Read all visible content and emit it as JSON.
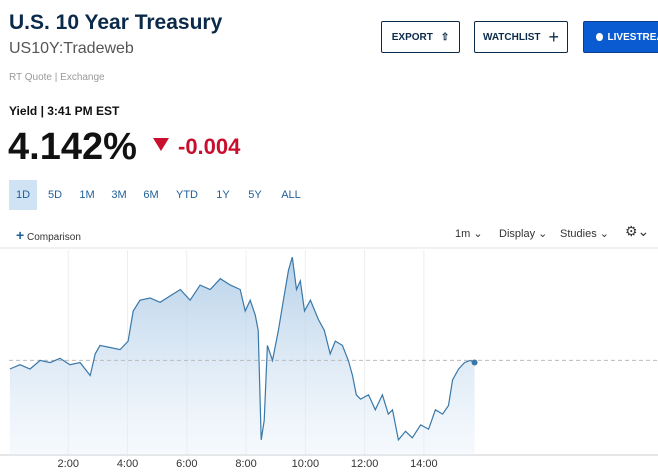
{
  "header": {
    "title": "U.S. 10 Year Treasury",
    "symbol": "US10Y:Tradeweb",
    "source": "RT Quote | Exchange"
  },
  "buttons": [
    "EXPORT",
    "WATCHLIST",
    "LIVESTREAM"
  ],
  "quote": {
    "label": "Yield | 3:41 PM EST",
    "price": "4.142%",
    "change": "-0.004"
  },
  "ranges": [
    "1D",
    "5D",
    "1M",
    "3M",
    "6M",
    "YTD",
    "1Y",
    "5Y",
    "ALL"
  ],
  "selected_range": 0,
  "toolbar": {
    "comparison": "Comparison",
    "interval": "1m",
    "display": "Display",
    "studies": "Studies"
  },
  "chart_data": {
    "type": "area",
    "x": [
      0.03,
      0.37,
      0.71,
      1.05,
      1.39,
      1.72,
      2.06,
      2.4,
      2.74,
      2.91,
      3.07,
      3.41,
      3.75,
      4.02,
      4.19,
      4.42,
      4.76,
      5.1,
      5.44,
      5.78,
      6.11,
      6.45,
      6.79,
      7.13,
      7.47,
      7.8,
      7.97,
      8.14,
      8.31,
      8.41,
      8.51,
      8.61,
      8.72,
      8.89,
      9.09,
      9.26,
      9.43,
      9.56,
      9.7,
      9.83,
      9.97,
      10.17,
      10.44,
      10.64,
      10.84,
      11.01,
      11.25,
      11.45,
      11.59,
      11.72,
      11.86,
      12.13,
      12.36,
      12.6,
      12.8,
      12.94,
      13.14,
      13.38,
      13.61,
      13.89,
      14.16,
      14.39,
      14.63,
      14.83,
      14.97,
      15.17,
      15.37,
      15.57,
      15.71
    ],
    "values": [
      4.14,
      4.142,
      4.14,
      4.144,
      4.143,
      4.145,
      4.142,
      4.143,
      4.137,
      4.147,
      4.151,
      4.15,
      4.149,
      4.153,
      4.167,
      4.172,
      4.173,
      4.171,
      4.174,
      4.177,
      4.172,
      4.179,
      4.177,
      4.182,
      4.179,
      4.177,
      4.167,
      4.172,
      4.165,
      4.158,
      4.107,
      4.116,
      4.151,
      4.144,
      4.158,
      4.172,
      4.186,
      4.192,
      4.177,
      4.181,
      4.167,
      4.172,
      4.163,
      4.158,
      4.147,
      4.153,
      4.151,
      4.144,
      4.137,
      4.128,
      4.126,
      4.128,
      4.121,
      4.128,
      4.119,
      4.121,
      4.107,
      4.111,
      4.108,
      4.114,
      4.112,
      4.121,
      4.119,
      4.123,
      4.135,
      4.14,
      4.143,
      4.144,
      4.143
    ],
    "reference_line": 4.144,
    "xlim": [
      0,
      21.9
    ],
    "ylim": [
      4.1,
      4.2
    ],
    "xticks": [
      {
        "value": 2,
        "label": "2:00"
      },
      {
        "value": 4,
        "label": "4:00"
      },
      {
        "value": 6,
        "label": "6:00"
      },
      {
        "value": 8,
        "label": "8:00"
      },
      {
        "value": 10,
        "label": "10:00"
      },
      {
        "value": 12,
        "label": "12:00"
      },
      {
        "value": 14,
        "label": "14:00"
      }
    ],
    "color": "#3a78a8",
    "grid": true
  }
}
